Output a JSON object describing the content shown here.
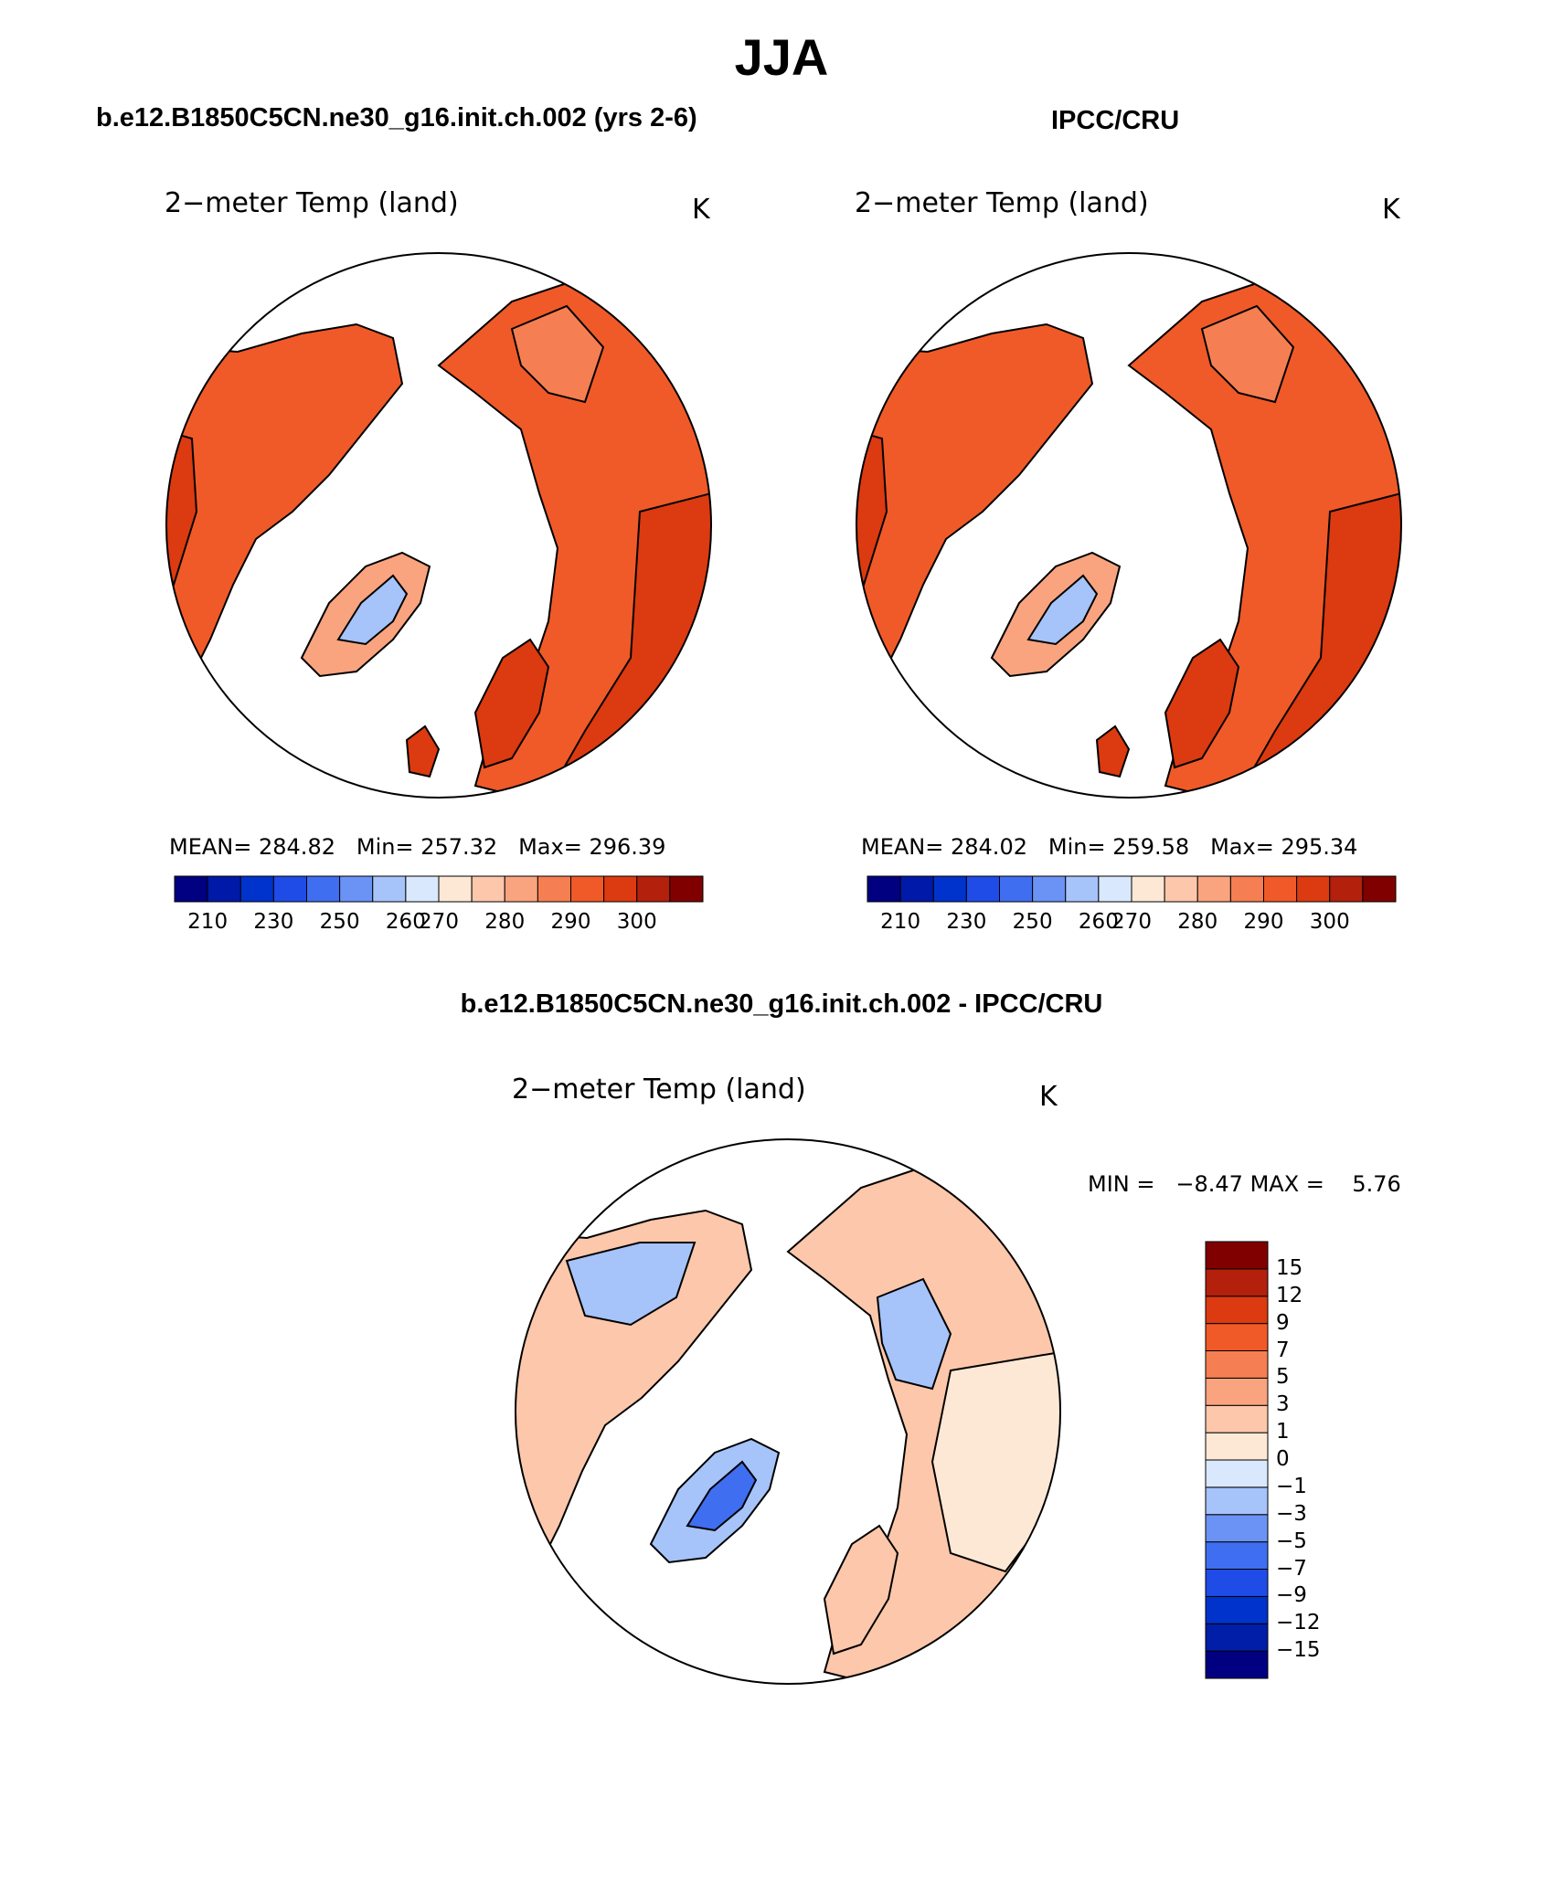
{
  "season_title": "JJA",
  "panels": [
    {
      "case_title": "b.e12.B1850C5CN.ne30_g16.init.ch.002 (yrs 2-6)",
      "variable": "2−meter Temp (land)",
      "units": "K",
      "stats": {
        "mean_label": "MEAN=",
        "mean": "284.82",
        "min_label": "Min=",
        "min": "257.32",
        "max_label": "Max=",
        "max": "296.39"
      }
    },
    {
      "case_title": "IPCC/CRU",
      "variable": "2−meter Temp (land)",
      "units": "K",
      "stats": {
        "mean_label": "MEAN=",
        "mean": "284.02",
        "min_label": "Min=",
        "min": "259.58",
        "max_label": "Max=",
        "max": "295.34"
      }
    }
  ],
  "diff_panel": {
    "title": "b.e12.B1850C5CN.ne30_g16.init.ch.002 - IPCC/CRU",
    "variable": "2−meter Temp (land)",
    "units": "K",
    "min_label": "MIN =",
    "min": "−8.47",
    "max_label": "MAX =",
    "max": "5.76"
  },
  "colorbars": {
    "absolute": {
      "colors": [
        "#000080",
        "#0019a8",
        "#0033cc",
        "#1f4ce6",
        "#3f6ef0",
        "#6a93f5",
        "#a6c3fa",
        "#d9e8fc",
        "#fde8d6",
        "#fcc7aa",
        "#f9a47f",
        "#f57f52",
        "#f05a28",
        "#dc3a10",
        "#b3200c",
        "#800000"
      ],
      "ticks": [
        "210",
        "230",
        "250",
        "260",
        "270",
        "280",
        "290",
        "300"
      ]
    },
    "difference": {
      "colors": [
        "#000080",
        "#001ea8",
        "#0033cc",
        "#1f4ce6",
        "#3f6ef0",
        "#6a93f5",
        "#a6c3fa",
        "#d9e8fc",
        "#fde8d6",
        "#fcc7aa",
        "#f9a47f",
        "#f57f52",
        "#f05a28",
        "#dc3a10",
        "#b3200c",
        "#800000"
      ],
      "ticks": [
        "−15",
        "−12",
        "−9",
        "−7",
        "−5",
        "−3",
        "−1",
        "0",
        "1",
        "3",
        "5",
        "7",
        "9",
        "12",
        "15"
      ]
    }
  },
  "map_colors": {
    "warm_high": "#dc3a10",
    "warm_mid": "#f05a28",
    "warm_low": "#f57f52",
    "warm_pale": "#f9a47f",
    "cool_pale": "#d9e8fc",
    "cool_mid": "#a6c3fa",
    "diff_warm": "#fcc7aa",
    "diff_warm_pale": "#fde8d6",
    "diff_cool": "#a6c3fa",
    "diff_cool_strong": "#3f6ef0"
  }
}
